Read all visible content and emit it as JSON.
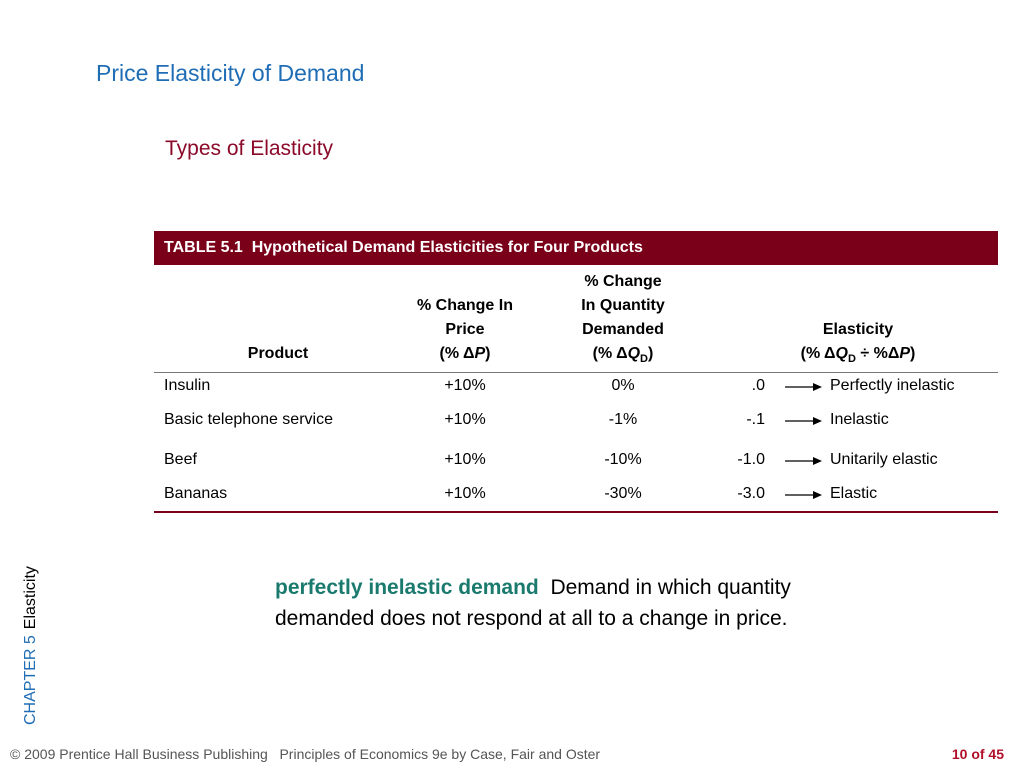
{
  "header": {
    "title": "Price Elasticity of Demand",
    "subtitle": "Types of Elasticity"
  },
  "table": {
    "caption": "TABLE 5.1  Hypothetical Demand Elasticities for Four Products",
    "columns": {
      "product": "Product",
      "price": {
        "lines": [
          "% Change In",
          "Price"
        ],
        "formula": [
          "(% Δ",
          "P",
          ")"
        ]
      },
      "quantity": {
        "lines": [
          "% Change",
          "In Quantity",
          "Demanded"
        ],
        "formula": [
          "(% Δ",
          "Q",
          "D",
          ")"
        ]
      },
      "elasticity": {
        "lines": [
          "Elasticity"
        ],
        "formula": [
          "(% Δ",
          "Q",
          "D",
          " ÷ %Δ",
          "P",
          ")"
        ]
      }
    },
    "rows": [
      [
        "Insulin",
        "+10%",
        "0%",
        ".0",
        "Perfectly inelastic"
      ],
      [
        "Basic telephone service",
        "+10%",
        "-1%",
        "-.1",
        "Inelastic"
      ],
      [
        "Beef",
        "+10%",
        "-10%",
        "-1.0",
        "Unitarily elastic"
      ],
      [
        "Bananas",
        "+10%",
        "-30%",
        "-3.0",
        "Elastic"
      ]
    ]
  },
  "definition": {
    "term": "perfectly inelastic demand",
    "text": "Demand in which quantity demanded does not respond at all to a change in price."
  },
  "sidebar": {
    "chapter": "CHAPTER 5",
    "topic": "Elasticity"
  },
  "footer": {
    "copyright": "© 2009 Prentice Hall Business Publishing",
    "book": "Principles of Economics 9e by Case, Fair and Oster",
    "page": "10 of 45"
  }
}
